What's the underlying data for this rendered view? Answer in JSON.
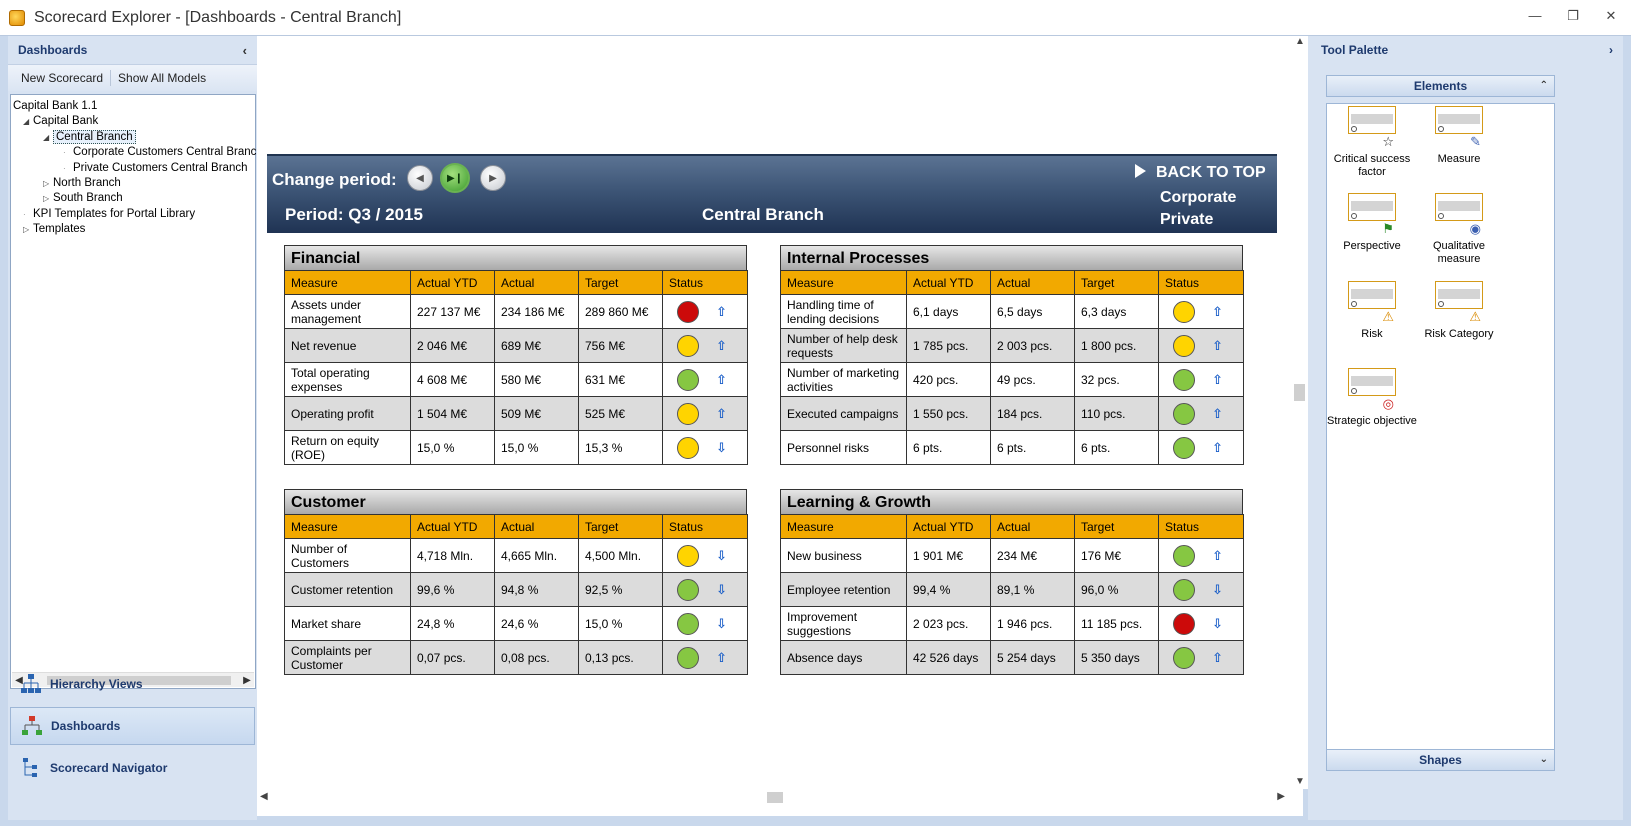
{
  "window": {
    "title": "Scorecard Explorer - [Dashboards - Central Branch]"
  },
  "left_panel": {
    "header": "Dashboards",
    "toolbar": {
      "new_scorecard": "New Scorecard",
      "show_all_models": "Show All Models"
    },
    "tree": [
      {
        "label": "Capital Bank 1.1",
        "level": 0
      },
      {
        "label": "Capital Bank",
        "level": 1,
        "toggle": "◢"
      },
      {
        "label": "Central Branch",
        "level": 2,
        "toggle": "◢",
        "selected": true
      },
      {
        "label": "Corporate Customers Central Branch",
        "level": 3
      },
      {
        "label": "Private Customers Central Branch",
        "level": 3
      },
      {
        "label": "North Branch",
        "level": 2,
        "toggle": "▷"
      },
      {
        "label": "South Branch",
        "level": 2,
        "toggle": "▷"
      },
      {
        "label": "KPI Templates for Portal Library",
        "level": 1
      },
      {
        "label": "Templates",
        "level": 1,
        "toggle": "▷"
      }
    ],
    "nav": [
      {
        "label": "Hierarchy Views",
        "icon": "hierarchy-icon",
        "active": false
      },
      {
        "label": "Dashboards",
        "icon": "dashboards-icon",
        "active": true
      },
      {
        "label": "Scorecard Navigator",
        "icon": "navigator-icon",
        "active": false
      }
    ]
  },
  "banner": {
    "change_period": "Change period:",
    "period": "Period: Q3 / 2015",
    "branch": "Central Branch",
    "back_to_top": "BACK TO TOP",
    "corporate": "Corporate",
    "private": "Private"
  },
  "colors": {
    "red": "#cc0a0a",
    "yellow": "#ffd400",
    "green": "#86c742",
    "header_orange": "#f2a900"
  },
  "scorecards": [
    {
      "title": "Financial",
      "columns": [
        "Measure",
        "Actual YTD",
        "Actual",
        "Target",
        "Status"
      ],
      "rows": [
        {
          "measure": "Assets under management",
          "ytd": "227 137 M€",
          "actual": "234 186 M€",
          "target": "289 860 M€",
          "status": "red",
          "trend": "up"
        },
        {
          "measure": "Net revenue",
          "ytd": "2 046 M€",
          "actual": "689 M€",
          "target": "756 M€",
          "status": "yellow",
          "trend": "up"
        },
        {
          "measure": "Total operating expenses",
          "ytd": "4 608 M€",
          "actual": "580 M€",
          "target": "631 M€",
          "status": "green",
          "trend": "up"
        },
        {
          "measure": "Operating profit",
          "ytd": "1 504 M€",
          "actual": "509 M€",
          "target": "525 M€",
          "status": "yellow",
          "trend": "up"
        },
        {
          "measure": "Return on equity (ROE)",
          "ytd": "15,0 %",
          "actual": "15,0 %",
          "target": "15,3 %",
          "status": "yellow",
          "trend": "down"
        }
      ]
    },
    {
      "title": "Internal Processes",
      "columns": [
        "Measure",
        "Actual YTD",
        "Actual",
        "Target",
        "Status"
      ],
      "rows": [
        {
          "measure": "Handling time of lending decisions",
          "ytd": "6,1 days",
          "actual": "6,5 days",
          "target": "6,3 days",
          "status": "yellow",
          "trend": "up"
        },
        {
          "measure": "Number of help desk requests",
          "ytd": "1 785 pcs.",
          "actual": "2 003 pcs.",
          "target": "1 800 pcs.",
          "status": "yellow",
          "trend": "up"
        },
        {
          "measure": "Number of marketing activities",
          "ytd": "420 pcs.",
          "actual": "49 pcs.",
          "target": "32 pcs.",
          "status": "green",
          "trend": "up"
        },
        {
          "measure": "Executed campaigns",
          "ytd": "1 550 pcs.",
          "actual": "184 pcs.",
          "target": "110 pcs.",
          "status": "green",
          "trend": "up"
        },
        {
          "measure": "Personnel risks",
          "ytd": "6 pts.",
          "actual": "6 pts.",
          "target": "6 pts.",
          "status": "green",
          "trend": "up"
        }
      ]
    },
    {
      "title": "Customer",
      "columns": [
        "Measure",
        "Actual YTD",
        "Actual",
        "Target",
        "Status"
      ],
      "rows": [
        {
          "measure": "Number of Customers",
          "ytd": "4,718 Mln.",
          "actual": "4,665 Mln.",
          "target": "4,500 Mln.",
          "status": "yellow",
          "trend": "down"
        },
        {
          "measure": "Customer retention",
          "ytd": "99,6 %",
          "actual": "94,8 %",
          "target": "92,5 %",
          "status": "green",
          "trend": "down"
        },
        {
          "measure": "Market share",
          "ytd": "24,8 %",
          "actual": "24,6 %",
          "target": "15,0 %",
          "status": "green",
          "trend": "down"
        },
        {
          "measure": "Complaints per Customer",
          "ytd": "0,07 pcs.",
          "actual": "0,08 pcs.",
          "target": "0,13 pcs.",
          "status": "green",
          "trend": "up"
        }
      ]
    },
    {
      "title": "Learning & Growth",
      "columns": [
        "Measure",
        "Actual YTD",
        "Actual",
        "Target",
        "Status"
      ],
      "rows": [
        {
          "measure": "New business",
          "ytd": "1 901 M€",
          "actual": "234 M€",
          "target": "176 M€",
          "status": "green",
          "trend": "up"
        },
        {
          "measure": "Employee retention",
          "ytd": "99,4 %",
          "actual": "89,1 %",
          "target": "96,0 %",
          "status": "green",
          "trend": "down"
        },
        {
          "measure": "Improvement suggestions",
          "ytd": "2 023 pcs.",
          "actual": "1 946 pcs.",
          "target": "11 185 pcs.",
          "status": "red",
          "trend": "down"
        },
        {
          "measure": "Absence days",
          "ytd": "42 526 days",
          "actual": "5 254 days",
          "target": "5 350 days",
          "status": "green",
          "trend": "up"
        }
      ]
    }
  ],
  "right_panel": {
    "header": "Tool Palette",
    "elements_label": "Elements",
    "shapes_label": "Shapes",
    "items": [
      {
        "label": "Critical success factor",
        "icon": "star-icon",
        "glyph": "☆"
      },
      {
        "label": "Measure",
        "icon": "ruler-icon",
        "glyph": "✎"
      },
      {
        "label": "Perspective",
        "icon": "flag-icon",
        "glyph": "⚑"
      },
      {
        "label": "Qualitative measure",
        "icon": "eye-icon",
        "glyph": "◉"
      },
      {
        "label": "Risk",
        "icon": "warning-icon",
        "glyph": "⚠"
      },
      {
        "label": "Risk Category",
        "icon": "folder-warning-icon",
        "glyph": "⚠"
      },
      {
        "label": "Strategic objective",
        "icon": "target-icon",
        "glyph": "◎"
      }
    ]
  }
}
